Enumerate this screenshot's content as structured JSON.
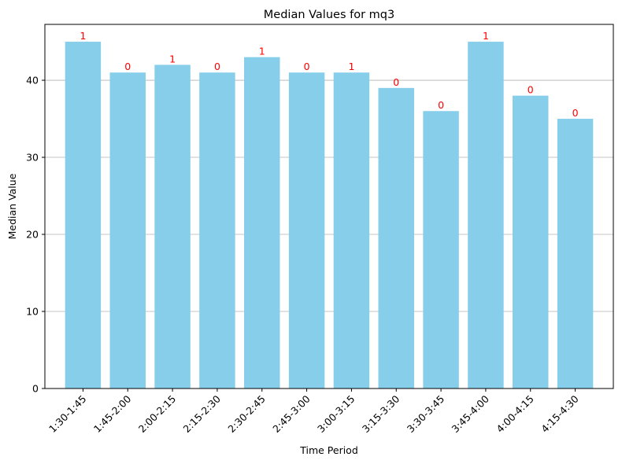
{
  "chart_data": {
    "type": "bar",
    "title": "Median Values for mq3",
    "xlabel": "Time Period",
    "ylabel": "Median Value",
    "categories": [
      "1:30-1:45",
      "1:45-2:00",
      "2:00-2:15",
      "2:15-2:30",
      "2:30-2:45",
      "2:45-3:00",
      "3:00-3:15",
      "3:15-3:30",
      "3:30-3:45",
      "3:45-4:00",
      "4:00-4:15",
      "4:15-4:30"
    ],
    "values": [
      45,
      41,
      42,
      41,
      43,
      41,
      41,
      39,
      36,
      45,
      38,
      35
    ],
    "bar_labels": [
      "1",
      "0",
      "1",
      "0",
      "1",
      "0",
      "1",
      "0",
      "0",
      "1",
      "0",
      "0"
    ],
    "ylim": [
      0,
      47.25
    ],
    "yticks": [
      0,
      10,
      20,
      30,
      40
    ],
    "grid": "y-axis",
    "bar_color": "#87ceeb",
    "label_color": "#ff0000"
  }
}
